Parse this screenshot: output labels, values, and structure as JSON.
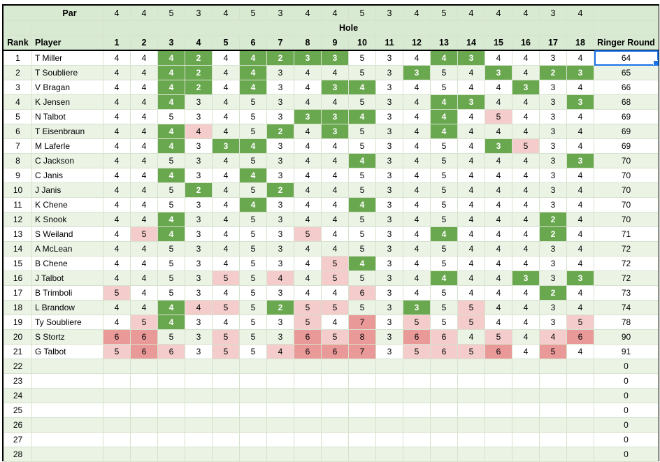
{
  "header": {
    "par_label": "Par",
    "hole_label": "Hole",
    "rank_label": "Rank",
    "player_label": "Player",
    "ringer_label": "Ringer Round",
    "holes": [
      "1",
      "2",
      "3",
      "4",
      "5",
      "6",
      "7",
      "8",
      "9",
      "10",
      "11",
      "12",
      "13",
      "14",
      "15",
      "16",
      "17",
      "18"
    ],
    "par": [
      4,
      4,
      5,
      3,
      4,
      5,
      3,
      4,
      4,
      5,
      3,
      4,
      5,
      4,
      4,
      4,
      3,
      4
    ]
  },
  "colors": {
    "header_bg": "#d9ead3",
    "stripe_bg": "#ebf3e5",
    "birdie": "#6aa84f",
    "eagle": "#38761d",
    "bogey": "#f4cccc",
    "double_bogey": "#ea9999",
    "selection": "#1a73e8"
  },
  "rows": [
    {
      "rank": "1",
      "player": "T Miller",
      "scores": [
        4,
        4,
        4,
        2,
        4,
        4,
        2,
        3,
        3,
        5,
        3,
        4,
        4,
        3,
        4,
        4,
        3,
        4
      ],
      "total": "64"
    },
    {
      "rank": "2",
      "player": "T Soubliere",
      "scores": [
        4,
        4,
        4,
        2,
        4,
        4,
        3,
        4,
        4,
        5,
        3,
        3,
        5,
        4,
        3,
        4,
        2,
        3
      ],
      "total": "65"
    },
    {
      "rank": "3",
      "player": "V Bragan",
      "scores": [
        4,
        4,
        4,
        2,
        4,
        4,
        3,
        4,
        3,
        4,
        3,
        4,
        5,
        4,
        4,
        3,
        3,
        4
      ],
      "total": "66"
    },
    {
      "rank": "4",
      "player": "K Jensen",
      "scores": [
        4,
        4,
        4,
        3,
        4,
        5,
        3,
        4,
        4,
        5,
        3,
        4,
        4,
        3,
        4,
        4,
        3,
        3
      ],
      "total": "68"
    },
    {
      "rank": "5",
      "player": "N Talbot",
      "scores": [
        4,
        4,
        5,
        3,
        4,
        5,
        3,
        3,
        3,
        4,
        3,
        4,
        4,
        4,
        5,
        4,
        3,
        4
      ],
      "total": "69"
    },
    {
      "rank": "6",
      "player": "T Eisenbraun",
      "scores": [
        4,
        4,
        4,
        4,
        4,
        5,
        2,
        4,
        3,
        5,
        3,
        4,
        4,
        4,
        4,
        4,
        3,
        4
      ],
      "total": "69"
    },
    {
      "rank": "7",
      "player": "M Laferle",
      "scores": [
        4,
        4,
        4,
        3,
        3,
        4,
        3,
        4,
        4,
        5,
        3,
        4,
        5,
        4,
        3,
        5,
        3,
        4
      ],
      "total": "69"
    },
    {
      "rank": "8",
      "player": "C Jackson",
      "scores": [
        4,
        4,
        5,
        3,
        4,
        5,
        3,
        4,
        4,
        4,
        3,
        4,
        5,
        4,
        4,
        4,
        3,
        3
      ],
      "total": "70"
    },
    {
      "rank": "9",
      "player": "C Janis",
      "scores": [
        4,
        4,
        4,
        3,
        4,
        4,
        3,
        4,
        4,
        5,
        3,
        4,
        5,
        4,
        4,
        4,
        3,
        4
      ],
      "total": "70"
    },
    {
      "rank": "10",
      "player": "J Janis",
      "scores": [
        4,
        4,
        5,
        2,
        4,
        5,
        2,
        4,
        4,
        5,
        3,
        4,
        5,
        4,
        4,
        4,
        3,
        4
      ],
      "total": "70"
    },
    {
      "rank": "11",
      "player": "K Chene",
      "scores": [
        4,
        4,
        5,
        3,
        4,
        4,
        3,
        4,
        4,
        4,
        3,
        4,
        5,
        4,
        4,
        4,
        3,
        4
      ],
      "total": "70"
    },
    {
      "rank": "12",
      "player": "K Snook",
      "scores": [
        4,
        4,
        4,
        3,
        4,
        5,
        3,
        4,
        4,
        5,
        3,
        4,
        5,
        4,
        4,
        4,
        2,
        4
      ],
      "total": "70"
    },
    {
      "rank": "13",
      "player": "S Weiland",
      "scores": [
        4,
        5,
        4,
        3,
        4,
        5,
        3,
        5,
        4,
        5,
        3,
        4,
        4,
        4,
        4,
        4,
        2,
        4
      ],
      "total": "71"
    },
    {
      "rank": "14",
      "player": "A McLean",
      "scores": [
        4,
        4,
        5,
        3,
        4,
        5,
        3,
        4,
        4,
        5,
        3,
        4,
        5,
        4,
        4,
        4,
        3,
        4
      ],
      "total": "72"
    },
    {
      "rank": "15",
      "player": "B Chene",
      "scores": [
        4,
        4,
        5,
        3,
        4,
        5,
        3,
        4,
        5,
        4,
        3,
        4,
        5,
        4,
        4,
        4,
        3,
        4
      ],
      "total": "72"
    },
    {
      "rank": "16",
      "player": "J Talbot",
      "scores": [
        4,
        4,
        5,
        3,
        5,
        5,
        4,
        4,
        5,
        5,
        3,
        4,
        4,
        4,
        4,
        3,
        3,
        3
      ],
      "total": "72"
    },
    {
      "rank": "17",
      "player": "B Trimboli",
      "scores": [
        5,
        4,
        5,
        3,
        4,
        5,
        3,
        4,
        4,
        6,
        3,
        4,
        5,
        4,
        4,
        4,
        2,
        4
      ],
      "total": "73"
    },
    {
      "rank": "18",
      "player": "L Brandow",
      "scores": [
        4,
        4,
        4,
        4,
        5,
        5,
        2,
        5,
        5,
        5,
        3,
        3,
        5,
        5,
        4,
        4,
        3,
        4
      ],
      "total": "74"
    },
    {
      "rank": "19",
      "player": "Ty Soubliere",
      "scores": [
        4,
        5,
        4,
        3,
        4,
        5,
        3,
        5,
        4,
        7,
        3,
        5,
        5,
        5,
        4,
        4,
        3,
        5
      ],
      "total": "78"
    },
    {
      "rank": "20",
      "player": "S Stortz",
      "scores": [
        6,
        6,
        5,
        3,
        5,
        5,
        3,
        6,
        5,
        8,
        3,
        6,
        6,
        4,
        5,
        4,
        4,
        6
      ],
      "total": "90"
    },
    {
      "rank": "21",
      "player": "G Talbot",
      "scores": [
        5,
        6,
        6,
        3,
        5,
        5,
        4,
        6,
        6,
        7,
        3,
        5,
        6,
        5,
        6,
        4,
        5,
        4
      ],
      "total": "91"
    },
    {
      "rank": "22",
      "player": "",
      "scores": [],
      "total": "0"
    },
    {
      "rank": "23",
      "player": "",
      "scores": [],
      "total": "0"
    },
    {
      "rank": "24",
      "player": "",
      "scores": [],
      "total": "0"
    },
    {
      "rank": "25",
      "player": "",
      "scores": [],
      "total": "0"
    },
    {
      "rank": "26",
      "player": "",
      "scores": [],
      "total": "0"
    },
    {
      "rank": "27",
      "player": "",
      "scores": [],
      "total": "0"
    },
    {
      "rank": "28",
      "player": "",
      "scores": [],
      "total": "0"
    }
  ]
}
